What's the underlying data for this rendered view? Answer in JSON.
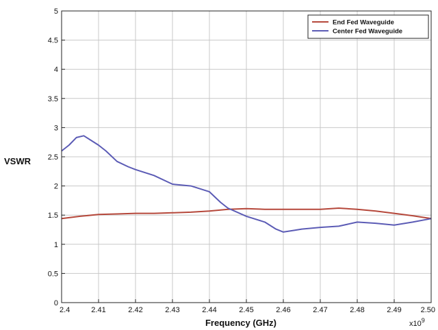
{
  "chart_data": {
    "type": "line",
    "xlabel": "Frequency (GHz)",
    "ylabel": "VSWR",
    "x_multiplier_label": "x10",
    "x_multiplier_exp": "9",
    "xlim": [
      2.4,
      2.5
    ],
    "ylim": [
      0,
      5
    ],
    "xticks": [
      "2.4",
      "2.41",
      "2.42",
      "2.43",
      "2.44",
      "2.45",
      "2.46",
      "2.47",
      "2.48",
      "2.49",
      "2.50"
    ],
    "yticks": [
      "0",
      "0.5",
      "1",
      "1.5",
      "2",
      "2.5",
      "3",
      "3.5",
      "4",
      "4.5",
      "5"
    ],
    "grid": true,
    "legend_position": "top-right",
    "series": [
      {
        "name": "End Fed Waveguide",
        "color": "#b5473a",
        "x": [
          2.4,
          2.405,
          2.41,
          2.415,
          2.42,
          2.425,
          2.43,
          2.435,
          2.44,
          2.445,
          2.45,
          2.455,
          2.46,
          2.465,
          2.47,
          2.475,
          2.48,
          2.485,
          2.49,
          2.495,
          2.5
        ],
        "y": [
          1.44,
          1.48,
          1.51,
          1.52,
          1.53,
          1.53,
          1.54,
          1.55,
          1.57,
          1.6,
          1.61,
          1.6,
          1.6,
          1.6,
          1.6,
          1.62,
          1.6,
          1.57,
          1.53,
          1.49,
          1.44
        ]
      },
      {
        "name": "Center Fed Waveguide",
        "color": "#5b5bb5",
        "x": [
          2.4,
          2.402,
          2.404,
          2.406,
          2.408,
          2.41,
          2.412,
          2.415,
          2.418,
          2.42,
          2.425,
          2.43,
          2.435,
          2.44,
          2.443,
          2.445,
          2.45,
          2.455,
          2.458,
          2.46,
          2.463,
          2.465,
          2.47,
          2.475,
          2.48,
          2.485,
          2.49,
          2.495,
          2.5
        ],
        "y": [
          2.6,
          2.7,
          2.83,
          2.86,
          2.78,
          2.7,
          2.6,
          2.42,
          2.33,
          2.28,
          2.18,
          2.03,
          2.0,
          1.9,
          1.72,
          1.62,
          1.48,
          1.38,
          1.26,
          1.21,
          1.24,
          1.26,
          1.29,
          1.31,
          1.38,
          1.36,
          1.33,
          1.38,
          1.44
        ]
      }
    ]
  }
}
